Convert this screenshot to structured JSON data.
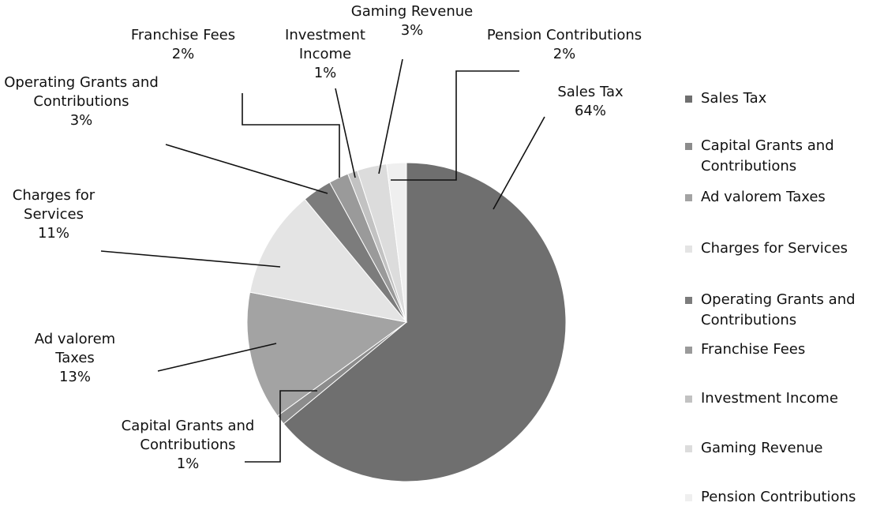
{
  "chart_data": {
    "type": "pie",
    "categories": [
      "Sales Tax",
      "Capital Grants and Contributions",
      "Ad valorem Taxes",
      "Charges for Services",
      "Operating Grants and Contributions",
      "Franchise Fees",
      "Investment Income",
      "Gaming Revenue",
      "Pension Contributions"
    ],
    "values": [
      64,
      1,
      13,
      11,
      3,
      2,
      1,
      3,
      2
    ],
    "value_labels": [
      "64%",
      "1%",
      "13%",
      "11%",
      "3%",
      "2%",
      "1%",
      "3%",
      "2%"
    ],
    "colors": [
      "#6f6f6f",
      "#8c8c8c",
      "#a3a3a3",
      "#e4e4e4",
      "#7c7c7c",
      "#9a9a9a",
      "#c2c2c2",
      "#dcdcdc",
      "#efefef"
    ],
    "legend": "right"
  }
}
